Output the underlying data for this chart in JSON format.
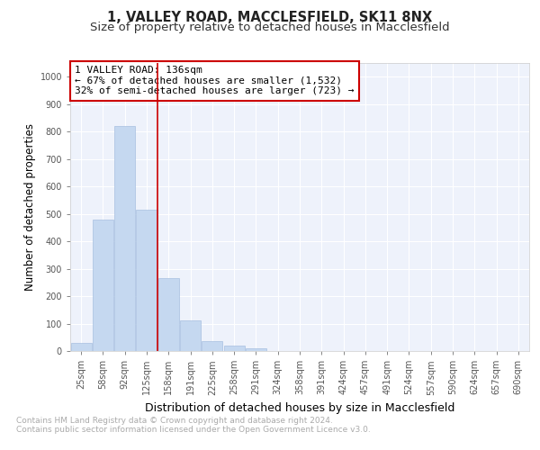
{
  "title1": "1, VALLEY ROAD, MACCLESFIELD, SK11 8NX",
  "title2": "Size of property relative to detached houses in Macclesfield",
  "xlabel": "Distribution of detached houses by size in Macclesfield",
  "ylabel": "Number of detached properties",
  "footnote1": "Contains HM Land Registry data © Crown copyright and database right 2024.",
  "footnote2": "Contains public sector information licensed under the Open Government Licence v3.0.",
  "categories": [
    "25sqm",
    "58sqm",
    "92sqm",
    "125sqm",
    "158sqm",
    "191sqm",
    "225sqm",
    "258sqm",
    "291sqm",
    "324sqm",
    "358sqm",
    "391sqm",
    "424sqm",
    "457sqm",
    "491sqm",
    "524sqm",
    "557sqm",
    "590sqm",
    "624sqm",
    "657sqm",
    "690sqm"
  ],
  "values": [
    30,
    478,
    820,
    515,
    265,
    110,
    35,
    20,
    10,
    0,
    0,
    0,
    0,
    0,
    0,
    0,
    0,
    0,
    0,
    0,
    0
  ],
  "bar_color": "#c5d8f0",
  "bar_edge_color": "#a8c0e0",
  "vline_x": 3.5,
  "vline_color": "#cc0000",
  "annotation_text": "1 VALLEY ROAD: 136sqm\n← 67% of detached houses are smaller (1,532)\n32% of semi-detached houses are larger (723) →",
  "annotation_box_color": "#ffffff",
  "annotation_box_edge": "#cc0000",
  "ylim": [
    0,
    1050
  ],
  "yticks": [
    0,
    100,
    200,
    300,
    400,
    500,
    600,
    700,
    800,
    900,
    1000
  ],
  "bg_color": "#eef2fb",
  "grid_color": "#ffffff",
  "title1_fontsize": 10.5,
  "title2_fontsize": 9.5,
  "ylabel_fontsize": 8.5,
  "xlabel_fontsize": 9,
  "tick_fontsize": 7,
  "footnote_fontsize": 6.5,
  "footnote_color": "#aaaaaa"
}
